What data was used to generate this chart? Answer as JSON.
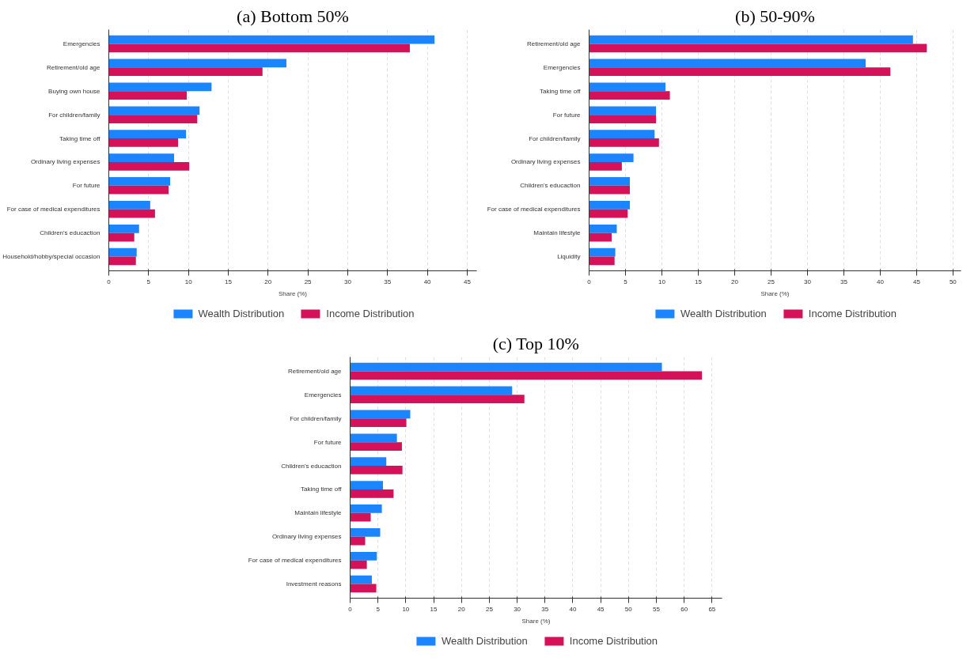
{
  "chart_data": [
    {
      "type": "bar",
      "orientation": "horizontal",
      "title": "(a) Bottom 50%",
      "xlabel": "Share (%)",
      "grid": "x",
      "legend": "bottom",
      "categories": [
        "Emergencies",
        "Retirement/old age",
        "Buying own house",
        "For children/family",
        "Taking time off",
        "Ordinary living expenses",
        "For future",
        "For case of medical expenditures",
        "Children's educaction",
        "Household/hobby/special occasion"
      ],
      "xlim": [
        0,
        46.2
      ],
      "xticks": [
        0,
        5,
        10,
        15,
        20,
        25,
        30,
        35,
        40,
        45
      ],
      "series": [
        {
          "name": "Wealth Distribution",
          "color": "#1a85ff",
          "values": [
            40.9,
            22.3,
            12.9,
            11.4,
            9.7,
            8.2,
            7.7,
            5.2,
            3.8,
            3.5
          ]
        },
        {
          "name": "Income Distribution",
          "color": "#d41159",
          "values": [
            37.8,
            19.3,
            9.8,
            11.1,
            8.7,
            10.1,
            7.5,
            5.8,
            3.2,
            3.4
          ]
        }
      ]
    },
    {
      "type": "bar",
      "orientation": "horizontal",
      "title": "(b) 50-90%",
      "xlabel": "Share (%)",
      "grid": "x",
      "legend": "bottom",
      "categories": [
        "Retirement/old age",
        "Emergencies",
        "Taking time off",
        "For future",
        "For children/family",
        "Ordinary living expenses",
        "Children's educaction",
        "For case of medical expenditures",
        "Maintain lifestyle",
        "Liquidity"
      ],
      "xlim": [
        0,
        51.1
      ],
      "xticks": [
        0,
        5,
        10,
        15,
        20,
        25,
        30,
        35,
        40,
        45,
        50
      ],
      "series": [
        {
          "name": "Wealth Distribution",
          "color": "#1a85ff",
          "values": [
            44.5,
            38.0,
            10.5,
            9.2,
            9.0,
            6.1,
            5.6,
            5.6,
            3.8,
            3.6
          ]
        },
        {
          "name": "Income Distribution",
          "color": "#d41159",
          "values": [
            46.4,
            41.4,
            11.1,
            9.2,
            9.6,
            4.5,
            5.6,
            5.3,
            3.1,
            3.5
          ]
        }
      ]
    },
    {
      "type": "bar",
      "orientation": "horizontal",
      "title": "(c) Top 10%",
      "xlabel": "Share (%)",
      "grid": "x",
      "legend": "bottom",
      "categories": [
        "Retirement/old age",
        "Emergencies",
        "For children/family",
        "For future",
        "Children's educaction",
        "Taking time off",
        "Maintain lifestyle",
        "Ordinary living expenses",
        "For case of medical expenditures",
        "Investment reasons"
      ],
      "xlim": [
        0,
        66.8
      ],
      "xticks": [
        0,
        5,
        10,
        15,
        20,
        25,
        30,
        35,
        40,
        45,
        50,
        55,
        60,
        65
      ],
      "series": [
        {
          "name": "Wealth Distribution",
          "color": "#1a85ff",
          "values": [
            56.0,
            29.1,
            10.8,
            8.4,
            6.5,
            5.9,
            5.7,
            5.4,
            4.8,
            3.9
          ]
        },
        {
          "name": "Income Distribution",
          "color": "#d41159",
          "values": [
            63.2,
            31.3,
            10.1,
            9.3,
            9.4,
            7.8,
            3.7,
            2.7,
            3.0,
            4.7
          ]
        }
      ]
    }
  ]
}
